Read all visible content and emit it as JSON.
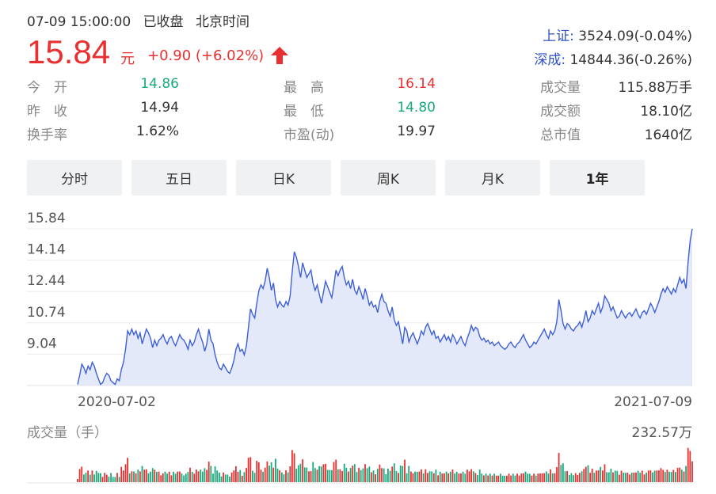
{
  "quote": {
    "date": "07-09 15:00:00",
    "status": "已收盘",
    "timezone": "北京时间",
    "price": "15.84",
    "unit": "元",
    "change": "+0.90 (+6.02%)",
    "direction_icon": "arrow-up-icon",
    "up_color": "#e93030",
    "down_color": "#1aa97d"
  },
  "indices": [
    {
      "name": "上证:",
      "value": "3524.09(-0.04%)"
    },
    {
      "name": "深成:",
      "value": "14844.36(-0.26%)"
    }
  ],
  "stats": {
    "col1": [
      {
        "label": "今　开",
        "value": "14.86",
        "tone": "green"
      },
      {
        "label": "昨　收",
        "value": "14.94",
        "tone": "normal"
      },
      {
        "label": "换手率",
        "value": "1.62%",
        "tone": "normal"
      }
    ],
    "col2": [
      {
        "label": "最　高",
        "value": "16.14",
        "tone": "red"
      },
      {
        "label": "最　低",
        "value": "14.80",
        "tone": "green"
      },
      {
        "label": "市盈(动)",
        "value": "19.97",
        "tone": "normal"
      }
    ],
    "col3": [
      {
        "label": "成交量",
        "value": "115.88万手",
        "tone": "normal"
      },
      {
        "label": "成交额",
        "value": "18.10亿",
        "tone": "normal"
      },
      {
        "label": "总市值",
        "value": "1640亿",
        "tone": "normal"
      }
    ]
  },
  "tabs": [
    {
      "label": "分时",
      "active": false
    },
    {
      "label": "五日",
      "active": false
    },
    {
      "label": "日K",
      "active": false
    },
    {
      "label": "周K",
      "active": false
    },
    {
      "label": "月K",
      "active": false
    },
    {
      "label": "1年",
      "active": true
    }
  ],
  "chart_data": {
    "type": "line",
    "y_ticks": [
      "15.84",
      "14.14",
      "12.44",
      "10.74",
      "9.04"
    ],
    "ylim": [
      7.34,
      15.84
    ],
    "x_start_label": "2020-07-02",
    "x_end_label": "2021-07-09",
    "line_color": "#3d5fd9",
    "fill_color": "#e4e9fa",
    "values": [
      7.4,
      7.9,
      8.5,
      8.3,
      8.0,
      8.4,
      8.2,
      8.6,
      8.4,
      8.0,
      7.7,
      7.4,
      7.5,
      7.8,
      8.0,
      7.9,
      7.6,
      7.5,
      7.4,
      7.7,
      7.6,
      8.2,
      8.6,
      9.3,
      10.3,
      10.1,
      10.4,
      10.1,
      10.3,
      9.9,
      10.2,
      9.6,
      10.0,
      10.4,
      10.2,
      9.9,
      9.4,
      9.8,
      9.5,
      9.8,
      9.9,
      10.1,
      9.8,
      9.6,
      9.9,
      10.0,
      9.7,
      9.5,
      9.8,
      10.1,
      9.9,
      9.8,
      9.6,
      9.3,
      9.8,
      9.5,
      9.7,
      10.1,
      10.4,
      10.0,
      9.7,
      9.2,
      9.6,
      10.4,
      9.8,
      9.6,
      9.0,
      8.6,
      8.3,
      8.2,
      8.5,
      8.3,
      8.1,
      8.0,
      8.3,
      8.7,
      9.3,
      9.6,
      9.2,
      9.3,
      9.0,
      9.5,
      10.5,
      11.5,
      11.2,
      11.0,
      11.8,
      12.5,
      12.8,
      12.6,
      13.0,
      13.7,
      13.2,
      12.5,
      12.9,
      12.0,
      11.6,
      11.9,
      11.7,
      11.6,
      11.9,
      11.7,
      12.2,
      13.5,
      14.6,
      14.3,
      13.8,
      13.2,
      14.0,
      13.6,
      13.2,
      13.4,
      13.6,
      12.9,
      12.5,
      12.8,
      12.3,
      11.8,
      12.4,
      13.0,
      12.7,
      12.4,
      12.1,
      12.8,
      13.6,
      13.3,
      13.6,
      13.8,
      13.2,
      12.8,
      13.0,
      12.6,
      13.1,
      12.5,
      12.3,
      12.7,
      12.4,
      12.0,
      12.6,
      12.2,
      11.7,
      11.9,
      11.6,
      11.7,
      11.3,
      11.9,
      12.3,
      11.9,
      11.8,
      11.4,
      11.1,
      11.6,
      10.9,
      10.6,
      10.8,
      10.2,
      9.6,
      10.5,
      10.3,
      9.7,
      10.0,
      10.2,
      9.9,
      9.6,
      9.9,
      10.3,
      10.1,
      10.5,
      10.7,
      10.4,
      10.1,
      10.3,
      9.9,
      10.0,
      9.7,
      9.9,
      10.1,
      9.8,
      10.0,
      9.7,
      10.1,
      9.9,
      9.6,
      9.8,
      10.0,
      9.7,
      9.5,
      9.9,
      10.2,
      10.6,
      10.3,
      10.5,
      10.4,
      10.0,
      9.8,
      9.9,
      9.7,
      9.8,
      9.6,
      9.7,
      9.5,
      9.6,
      9.7,
      9.5,
      9.4,
      9.3,
      9.4,
      9.6,
      9.7,
      9.5,
      9.4,
      9.6,
      9.7,
      9.9,
      10.1,
      9.8,
      9.6,
      9.4,
      9.5,
      9.7,
      9.6,
      9.8,
      10.0,
      10.2,
      10.4,
      10.1,
      9.9,
      10.3,
      10.1,
      10.3,
      10.8,
      12.0,
      11.4,
      10.7,
      10.4,
      10.7,
      10.6,
      10.4,
      10.3,
      10.5,
      10.6,
      10.8,
      10.5,
      10.9,
      11.4,
      10.8,
      11.0,
      11.4,
      11.2,
      11.5,
      11.8,
      11.3,
      11.6,
      12.2,
      12.0,
      11.8,
      11.4,
      11.6,
      11.3,
      11.0,
      11.1,
      11.4,
      11.2,
      11.0,
      11.2,
      11.3,
      11.1,
      11.3,
      11.5,
      11.2,
      11.0,
      11.3,
      11.4,
      11.2,
      11.5,
      11.8,
      11.6,
      11.3,
      11.6,
      11.9,
      12.3,
      12.6,
      12.4,
      12.7,
      12.5,
      12.3,
      12.6,
      12.4,
      12.8,
      13.2,
      12.9,
      13.1,
      12.6,
      14.0,
      15.2,
      15.84
    ]
  },
  "volume": {
    "title": "成交量（手）",
    "max_label": "232.57万",
    "up_color": "#e93030",
    "down_color": "#1aa97d"
  }
}
